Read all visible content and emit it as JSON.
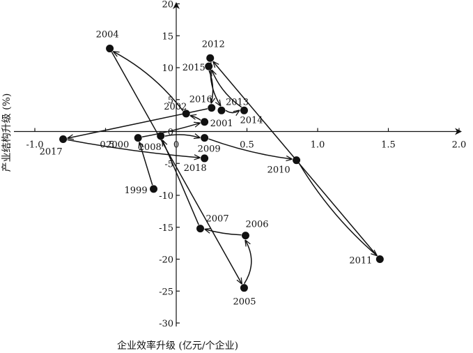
{
  "chart_data": {
    "type": "scatter",
    "xlabel": "企业效率升级 (亿元/个企业)",
    "ylabel": "产业结构升级 (%)",
    "xlim": [
      -1.0,
      2.0
    ],
    "ylim": [
      -30,
      20
    ],
    "xticks": [
      -1.0,
      -0.5,
      0,
      0.5,
      1.0,
      1.5,
      2.0
    ],
    "xtick_labels": [
      "-1.0",
      "-0.5",
      "0",
      "0.5",
      "1.0",
      "1.5",
      "2.0"
    ],
    "yticks": [
      -30,
      -25,
      -20,
      -15,
      -10,
      -5,
      0,
      5,
      10,
      15,
      20
    ],
    "ytick_labels": [
      "-30",
      "-25",
      "-20",
      "-15",
      "-10",
      "-5",
      "0",
      "5",
      "10",
      "15",
      "20"
    ],
    "grid": false,
    "connected": true,
    "points": [
      {
        "year": "1999",
        "x": -0.16,
        "y": -9.0
      },
      {
        "year": "2000",
        "x": -0.27,
        "y": -1.0
      },
      {
        "year": "2001",
        "x": 0.2,
        "y": 1.5
      },
      {
        "year": "2002",
        "x": 0.07,
        "y": 2.8
      },
      {
        "year": "2004",
        "x": -0.47,
        "y": 13.0
      },
      {
        "year": "2005",
        "x": 0.48,
        "y": -24.5
      },
      {
        "year": "2006",
        "x": 0.49,
        "y": -16.3
      },
      {
        "year": "2007",
        "x": 0.17,
        "y": -15.2
      },
      {
        "year": "2008",
        "x": -0.11,
        "y": -0.7
      },
      {
        "year": "2009",
        "x": 0.2,
        "y": -1.0
      },
      {
        "year": "2010",
        "x": 0.85,
        "y": -4.5
      },
      {
        "year": "2011",
        "x": 1.44,
        "y": -20.0
      },
      {
        "year": "2012",
        "x": 0.24,
        "y": 11.5
      },
      {
        "year": "2013",
        "x": 0.32,
        "y": 3.3
      },
      {
        "year": "2014",
        "x": 0.48,
        "y": 3.3
      },
      {
        "year": "2015",
        "x": 0.23,
        "y": 10.2
      },
      {
        "year": "2016",
        "x": 0.25,
        "y": 3.7
      },
      {
        "year": "2017",
        "x": -0.8,
        "y": -1.2
      },
      {
        "year": "2018",
        "x": 0.2,
        "y": -4.2
      }
    ]
  }
}
